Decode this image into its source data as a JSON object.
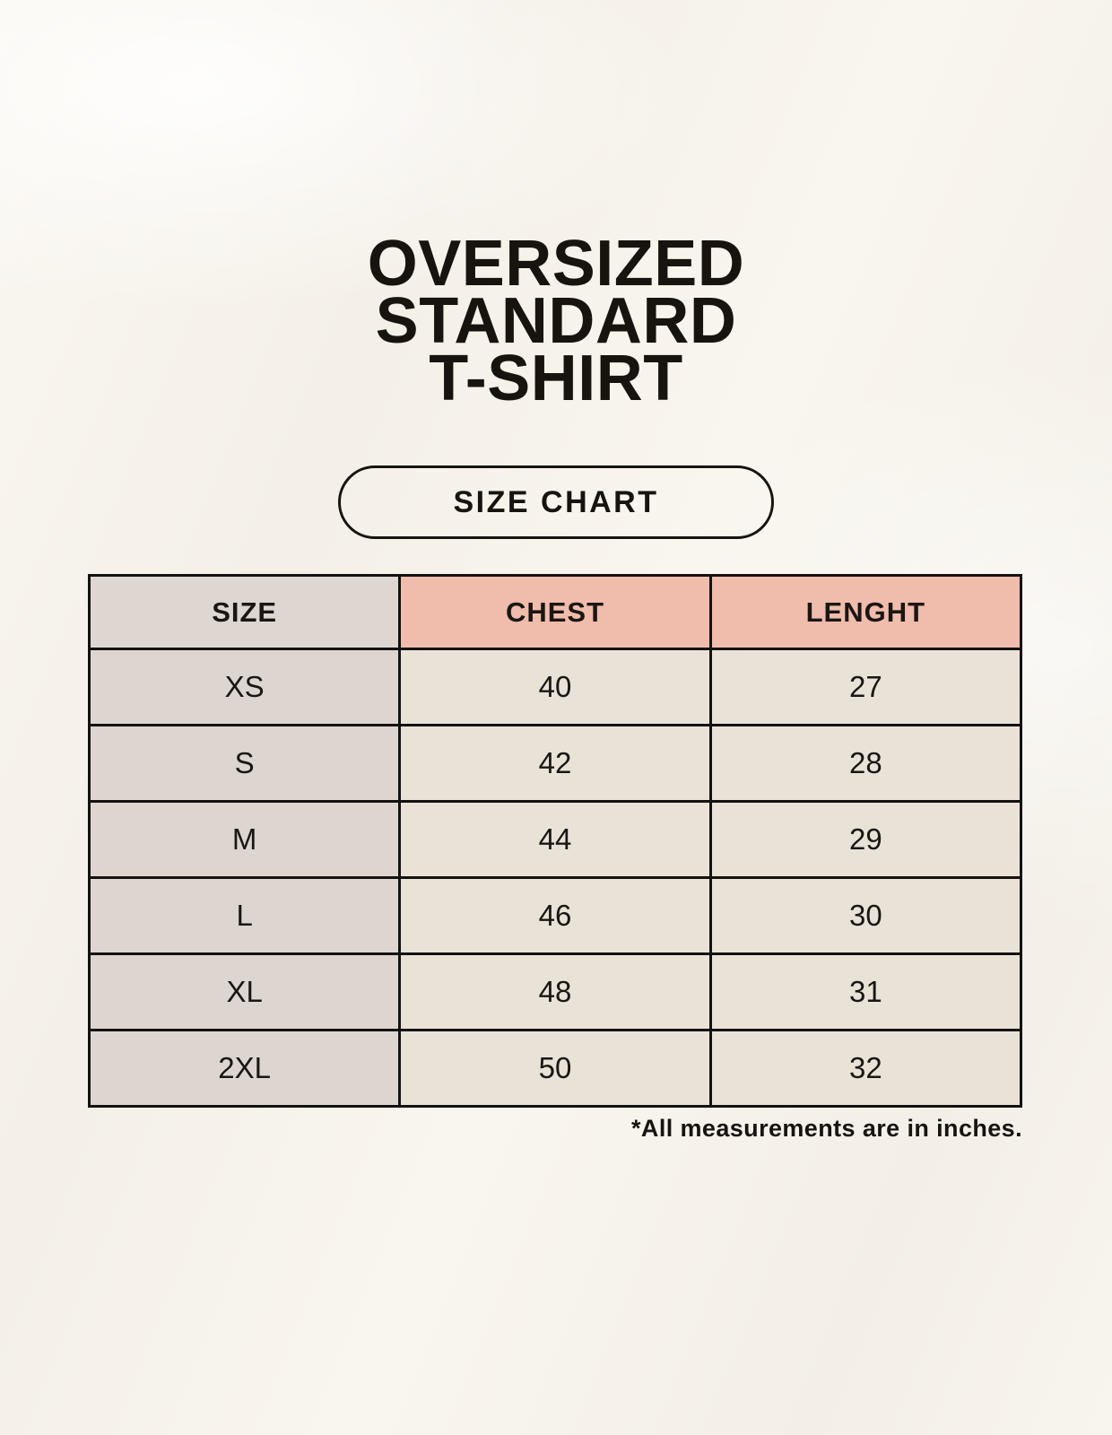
{
  "title": {
    "lines": [
      "OVERSIZED",
      "STANDARD",
      "T-SHIRT"
    ]
  },
  "size_chart_button": {
    "label": "SIZE CHART"
  },
  "table": {
    "columns": [
      "SIZE",
      "CHEST",
      "LENGHT"
    ],
    "rows": [
      [
        "XS",
        "40",
        "27"
      ],
      [
        "S",
        "42",
        "28"
      ],
      [
        "M",
        "44",
        "29"
      ],
      [
        "L",
        "46",
        "30"
      ],
      [
        "XL",
        "48",
        "31"
      ],
      [
        "2XL",
        "50",
        "32"
      ]
    ]
  },
  "footnote": "*All measurements are in inches.",
  "colors": {
    "background": "#f8f5ee",
    "header_size_bg": "#ddd6d1",
    "header_measure_bg": "#f0bcab",
    "row_label_bg": "#ddd5d0",
    "row_value_bg": "#e9e2d7",
    "border": "#141210",
    "text": "#17130f"
  },
  "chart_data": {
    "type": "table",
    "title": "SIZE CHART",
    "columns": [
      "SIZE",
      "CHEST",
      "LENGHT"
    ],
    "rows": [
      {
        "size": "XS",
        "chest": 40,
        "length": 27
      },
      {
        "size": "S",
        "chest": 42,
        "length": 28
      },
      {
        "size": "M",
        "chest": 44,
        "length": 29
      },
      {
        "size": "L",
        "chest": 46,
        "length": 30
      },
      {
        "size": "XL",
        "chest": 48,
        "length": 31
      },
      {
        "size": "2XL",
        "chest": 50,
        "length": 32
      }
    ],
    "units_note": "*All measurements are in inches."
  }
}
